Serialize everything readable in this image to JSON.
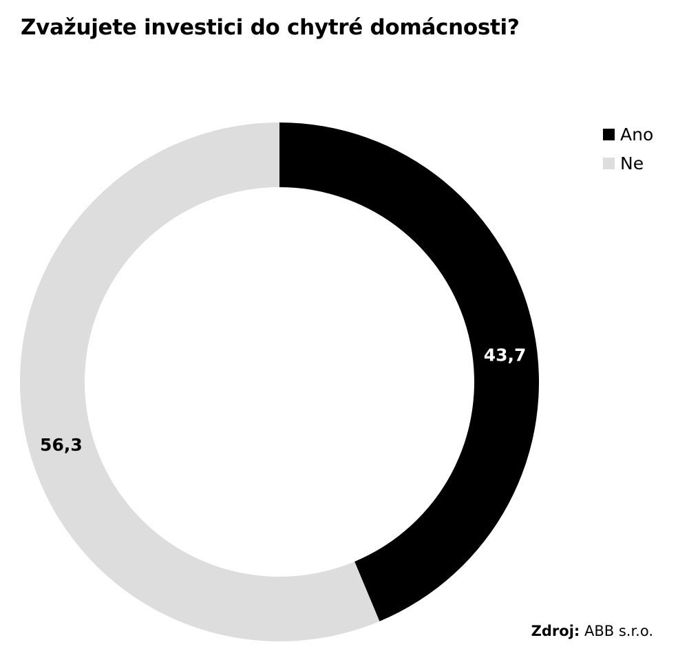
{
  "chart_data": {
    "type": "pie",
    "title": "Zvažujete investici do chytré domácnosti?",
    "categories": [
      "Ano",
      "Ne"
    ],
    "values": [
      43.7,
      56.3
    ],
    "labels": [
      "43,7",
      "56,3"
    ],
    "colors": [
      "#000000",
      "#dddddd"
    ],
    "label_colors": [
      "#ffffff",
      "#000000"
    ],
    "donut": true,
    "legend_position": "top-right",
    "source_label": "Zdroj:",
    "source_value": "ABB s.r.o."
  }
}
